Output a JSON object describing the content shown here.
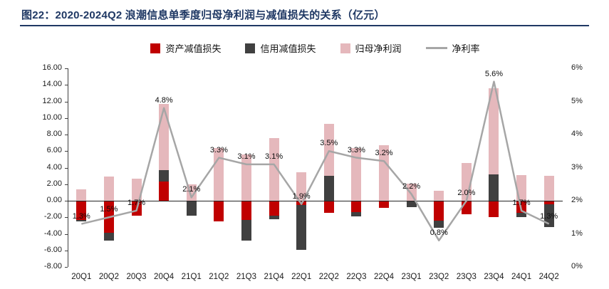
{
  "figure": {
    "title": "图22：2020-2024Q2 浪潮信息单季度归母净利润与减值损失的关系（亿元）"
  },
  "chart_data": {
    "type": "bar",
    "subtype": "stacked-bar-with-line-overlay",
    "unit": "亿元",
    "grid": false,
    "legend_position": "top",
    "categories": [
      "20Q1",
      "20Q2",
      "20Q3",
      "20Q4",
      "21Q1",
      "21Q2",
      "21Q3",
      "21Q4",
      "22Q1",
      "22Q2",
      "22Q3",
      "22Q4",
      "23Q1",
      "23Q2",
      "23Q3",
      "23Q4",
      "24Q1",
      "24Q2"
    ],
    "series": [
      {
        "name": "资产减值损失",
        "type": "bar",
        "color": "#c00000",
        "values": [
          -2.3,
          -3.9,
          -1.8,
          2.3,
          0,
          -2.5,
          -2.3,
          -1.8,
          -0.5,
          -1.5,
          -1.4,
          -0.9,
          0,
          -2.4,
          -1.6,
          -2.0,
          -1.5,
          -0.4
        ]
      },
      {
        "name": "信用减值损失",
        "type": "bar",
        "color": "#404040",
        "values": [
          -0.2,
          -0.9,
          0,
          1.4,
          -1.8,
          0,
          -2.5,
          -0.4,
          -5.4,
          3.0,
          -0.5,
          0,
          -0.8,
          -0.9,
          0,
          3.2,
          -0.5,
          -2.8
        ]
      },
      {
        "name": "归母净利润",
        "type": "bar",
        "color": "#e5b8bc",
        "values": [
          1.4,
          2.9,
          2.7,
          8.0,
          2.0,
          6.4,
          5.6,
          7.6,
          3.4,
          6.3,
          6.4,
          6.7,
          2.1,
          1.2,
          4.6,
          10.4,
          3.1,
          3.0
        ]
      },
      {
        "name": "净利率",
        "type": "line",
        "axis": "right",
        "color": "#a6a6a6",
        "values": [
          1.3,
          1.5,
          1.7,
          4.8,
          2.1,
          3.3,
          3.1,
          3.1,
          1.9,
          3.5,
          3.3,
          3.2,
          2.2,
          0.8,
          2.0,
          5.6,
          1.7,
          1.3
        ],
        "labels": [
          "1.3%",
          "1.5%",
          "1.7%",
          "4.8%",
          "2.1%",
          "3.3%",
          "3.1%",
          "3.1%",
          "1.9%",
          "3.5%",
          "3.3%",
          "3.2%",
          "2.2%",
          "0.8%",
          "2.0%",
          "5.6%",
          "1.7%",
          "1.3%"
        ]
      }
    ],
    "left_axis": {
      "min": -8,
      "max": 16,
      "step": 2,
      "labels": [
        "16.00",
        "14.00",
        "12.00",
        "10.00",
        "8.00",
        "6.00",
        "4.00",
        "2.00",
        "0.00",
        "-2.00",
        "-4.00",
        "-6.00",
        "-8.00"
      ]
    },
    "right_axis": {
      "min": 0,
      "max": 6,
      "step": 1,
      "labels": [
        "6%",
        "5%",
        "4%",
        "3%",
        "2%",
        "1%",
        "0%"
      ]
    }
  }
}
